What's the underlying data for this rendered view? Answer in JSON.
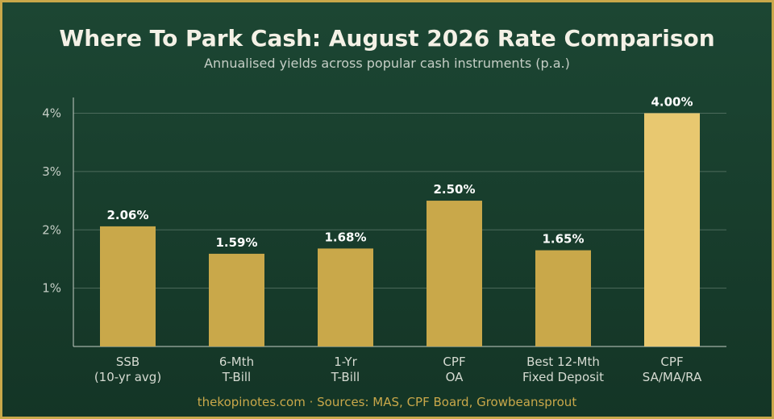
{
  "title": "Where To Park Cash: August 2026 Rate Comparison",
  "subtitle": "Annualised yields across popular cash instruments (p.a.)",
  "footer": "thekopinotes.com  ·  Sources: MAS, CPF Board, Growbeansprout",
  "colors": {
    "background": "#1a4230",
    "border": "#c9a84a",
    "bar": "#c9a84a",
    "bar_highlight": "#e8c870",
    "grid": "#4d6b5c",
    "axis": "#c5cec6"
  },
  "chart_data": {
    "type": "bar",
    "categories": [
      [
        "SSB",
        "(10-yr avg)"
      ],
      [
        "6-Mth",
        "T-Bill"
      ],
      [
        "1-Yr",
        "T-Bill"
      ],
      [
        "CPF",
        "OA"
      ],
      [
        "Best 12-Mth",
        "Fixed Deposit"
      ],
      [
        "CPF",
        "SA/MA/RA"
      ]
    ],
    "values": [
      2.06,
      1.59,
      1.68,
      2.5,
      1.65,
      4.0
    ],
    "value_labels": [
      "2.06%",
      "1.59%",
      "1.68%",
      "2.50%",
      "1.65%",
      "4.00%"
    ],
    "highlight_index": 5,
    "ylim": [
      0,
      4.3
    ],
    "yticks": [
      1,
      2,
      3,
      4
    ],
    "ytick_labels": [
      "1%",
      "2%",
      "3%",
      "4%"
    ],
    "grid": true,
    "xlabel": "",
    "ylabel": ""
  }
}
